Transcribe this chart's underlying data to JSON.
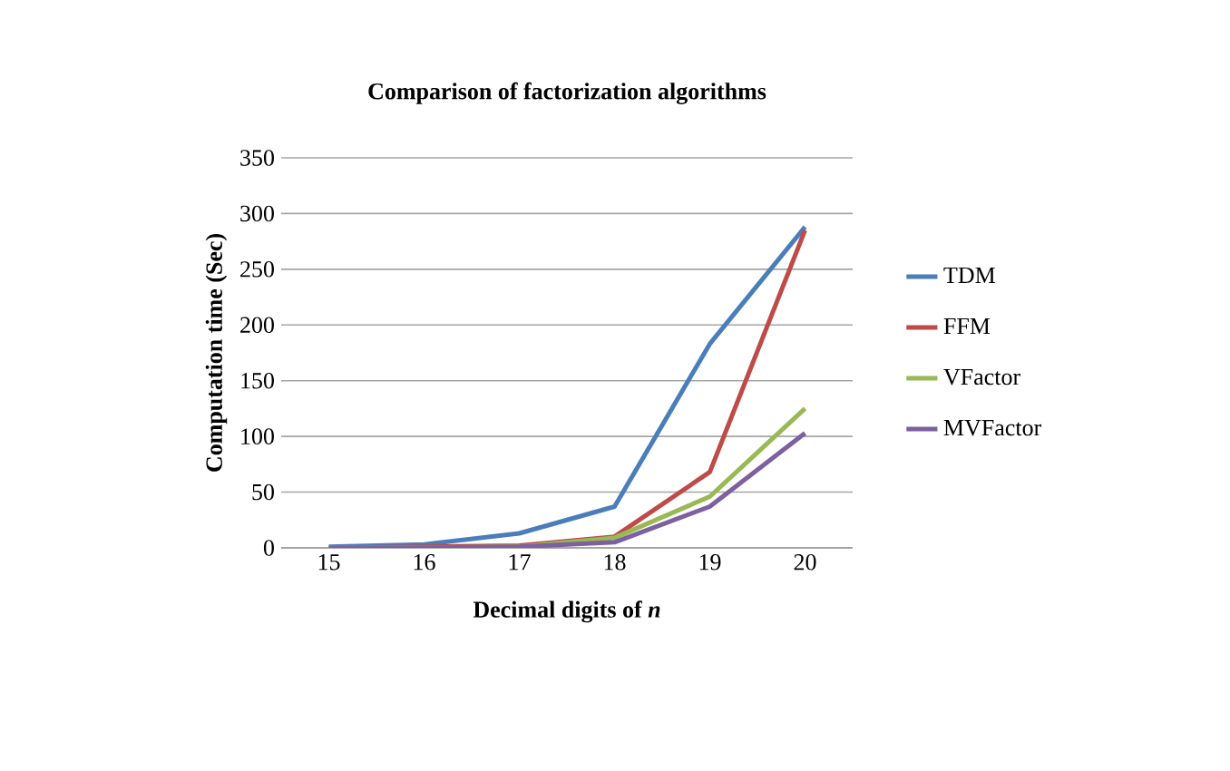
{
  "chart_data": {
    "type": "line",
    "title": "Comparison of factorization algorithms",
    "xlabel": "Decimal digits of *n*",
    "ylabel": "Computation time (Sec)",
    "categories": [
      "15",
      "16",
      "17",
      "18",
      "19",
      "20"
    ],
    "series": [
      {
        "name": "TDM",
        "color": "#4a7ebb",
        "values": [
          1,
          3,
          13,
          37,
          183,
          288
        ]
      },
      {
        "name": "FFM",
        "color": "#be4b48",
        "values": [
          0,
          1,
          2,
          10,
          68,
          285
        ]
      },
      {
        "name": "VFactor",
        "color": "#98b954",
        "values": [
          0,
          0,
          1,
          9,
          46,
          125
        ]
      },
      {
        "name": "MVFactor",
        "color": "#7d60a0",
        "values": [
          0,
          0,
          1,
          5,
          37,
          103
        ]
      }
    ],
    "ylim": [
      0,
      350
    ],
    "yticks": [
      0,
      50,
      100,
      150,
      200,
      250,
      300,
      350
    ],
    "grid": "y",
    "legend": "right",
    "marker": "none",
    "line_style": "solid"
  }
}
